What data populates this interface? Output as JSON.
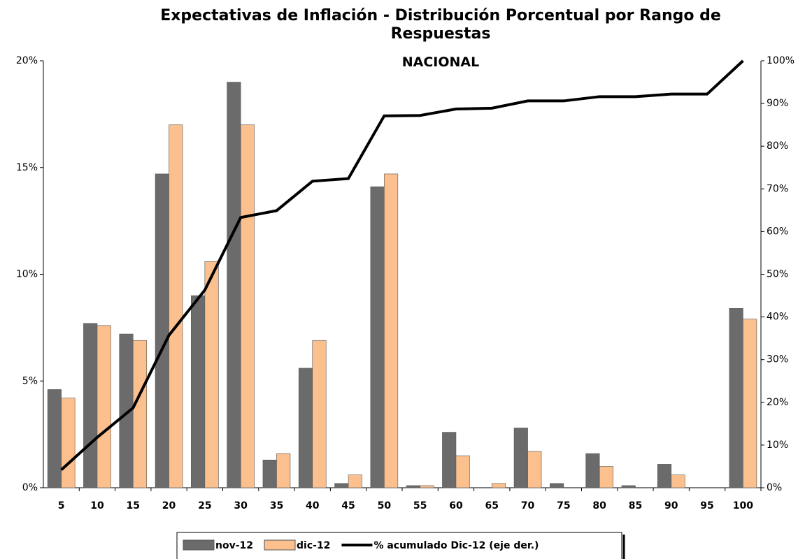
{
  "chart_data": {
    "type": "bar",
    "title": "Expectativas de Inflación - Distribución Porcentual por Rango de Respuestas",
    "subtitle": "NACIONAL",
    "categories": [
      "5",
      "10",
      "15",
      "20",
      "25",
      "30",
      "35",
      "40",
      "45",
      "50",
      "55",
      "60",
      "65",
      "70",
      "75",
      "80",
      "85",
      "90",
      "95",
      "100"
    ],
    "series": [
      {
        "name": "nov-12",
        "color": "#6b6b6b",
        "type": "bar",
        "values": [
          4.6,
          7.7,
          7.2,
          14.7,
          9.0,
          19.0,
          1.3,
          5.6,
          0.2,
          14.1,
          0.1,
          2.6,
          0,
          2.8,
          0.2,
          1.6,
          0.1,
          1.1,
          0,
          8.4
        ]
      },
      {
        "name": "dic-12",
        "color": "#fbc08e",
        "type": "bar",
        "values": [
          4.2,
          7.6,
          6.9,
          17.0,
          10.6,
          17.0,
          1.6,
          6.9,
          0.6,
          14.7,
          0.1,
          1.5,
          0.2,
          1.7,
          0,
          1.0,
          0,
          0.6,
          0,
          7.9
        ]
      },
      {
        "name": "% acumulado Dic-12 (eje der.)",
        "color": "#000000",
        "type": "line",
        "axis": "y2",
        "values": [
          4.2,
          11.8,
          18.7,
          35.7,
          46.3,
          63.3,
          64.9,
          71.8,
          72.4,
          87.1,
          87.2,
          88.7,
          88.9,
          90.6,
          90.6,
          91.6,
          91.6,
          92.2,
          92.2,
          100
        ]
      }
    ],
    "ylim": [
      0,
      20
    ],
    "yticks": [
      {
        "value": 0,
        "label": "0%"
      },
      {
        "value": 5,
        "label": "5%"
      },
      {
        "value": 10,
        "label": "10%"
      },
      {
        "value": 15,
        "label": "15%"
      },
      {
        "value": 20,
        "label": "20%"
      }
    ],
    "y2lim": [
      0,
      100
    ],
    "y2ticks": [
      {
        "value": 0,
        "label": "0%"
      },
      {
        "value": 10,
        "label": "10%"
      },
      {
        "value": 20,
        "label": "20%"
      },
      {
        "value": 30,
        "label": "30%"
      },
      {
        "value": 40,
        "label": "40%"
      },
      {
        "value": 50,
        "label": "50%"
      },
      {
        "value": 60,
        "label": "60%"
      },
      {
        "value": 70,
        "label": "70%"
      },
      {
        "value": 80,
        "label": "80%"
      },
      {
        "value": 90,
        "label": "90%"
      },
      {
        "value": 100,
        "label": "100%"
      }
    ],
    "legend": "bottom"
  }
}
